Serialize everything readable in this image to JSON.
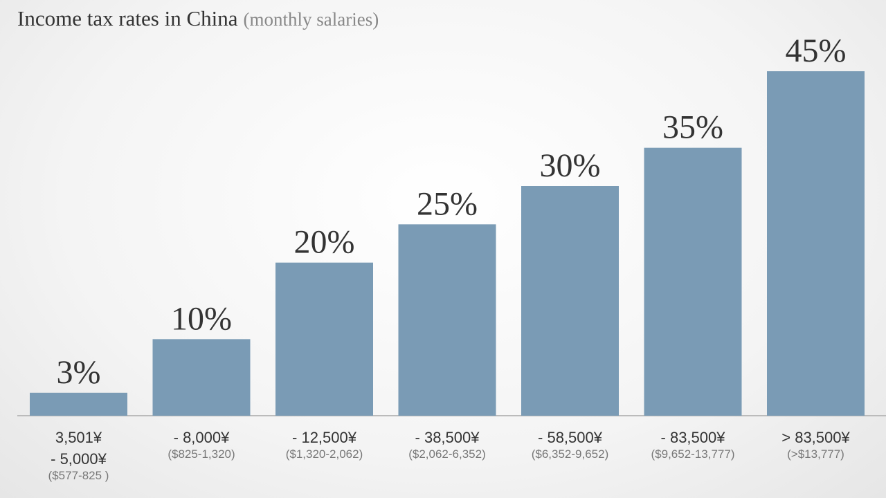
{
  "chart_data": {
    "type": "bar",
    "title": "Income tax rates in China",
    "subtitle": "(monthly salaries)",
    "categories": [
      [
        "3,501¥",
        "- 5,000¥"
      ],
      [
        "- 8,000¥"
      ],
      [
        "- 12,500¥"
      ],
      [
        "- 38,500¥"
      ],
      [
        "- 58,500¥"
      ],
      [
        "- 83,500¥"
      ],
      [
        "> 83,500¥"
      ]
    ],
    "usd_ranges": [
      "($577-825 )",
      "($825-1,320)",
      "($1,320-2,062)",
      "($2,062-6,352)",
      "($6,352-9,652)",
      "($9,652-13,777)",
      "(>$13,777)"
    ],
    "values": [
      3,
      10,
      20,
      25,
      30,
      35,
      45
    ],
    "value_labels": [
      "3%",
      "10%",
      "20%",
      "25%",
      "30%",
      "35%",
      "45%"
    ],
    "color": "#7a9bb5"
  }
}
